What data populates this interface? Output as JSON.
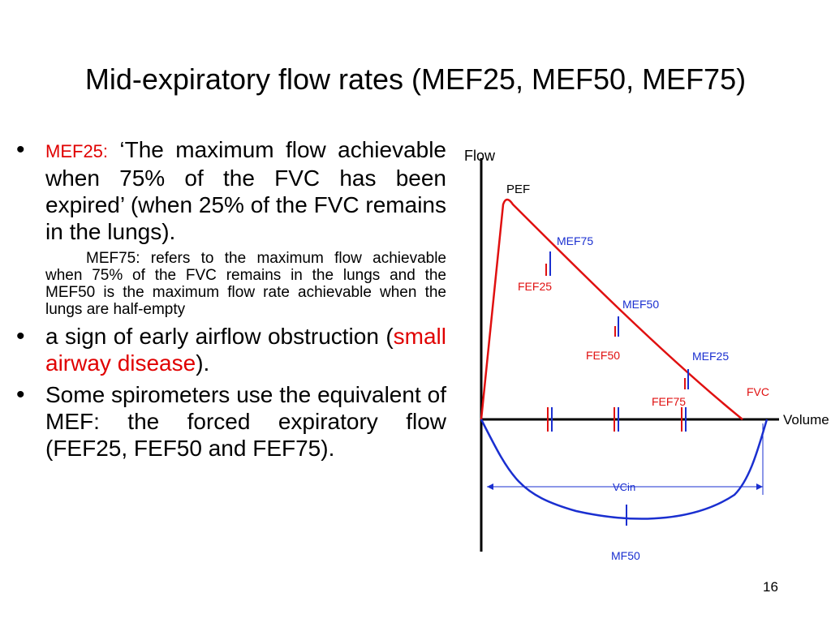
{
  "title": "Mid-expiratory flow rates (MEF25, MEF50, MEF75)",
  "bullet1": {
    "label": "MEF25:",
    "text": "‘The maximum flow achievable when 75% of the FVC has been expired’ (when 25% of the FVC remains in the lungs)."
  },
  "sub_note": "MEF75: refers to the maximum flow achievable when 75% of the FVC remains in the lungs and the MEF50 is the maximum flow rate achievable when the lungs are half-empty",
  "bullet2": {
    "text_a": "a sign of early airflow obstruction (",
    "highlight": "small airway disease",
    "text_b": ")."
  },
  "bullet3": {
    "text": "Some spirometers use the equivalent of MEF: the forced expiratory flow (FEF25, FEF50 and FEF75)."
  },
  "page_number": "16",
  "diagram": {
    "labels": {
      "flow": "Flow",
      "volume": "Volume",
      "pef": "PEF",
      "fvc": "FVC",
      "vcin": "VCin",
      "mf50": "MF50",
      "mef75": "MEF75",
      "mef50": "MEF50",
      "mef25": "MEF25",
      "fef25": "FEF25",
      "fef50": "FEF50",
      "fef75": "FEF75"
    },
    "colors": {
      "expiration": "#e01010",
      "inspiration": "#1a2fd0",
      "axis": "#000000"
    }
  }
}
